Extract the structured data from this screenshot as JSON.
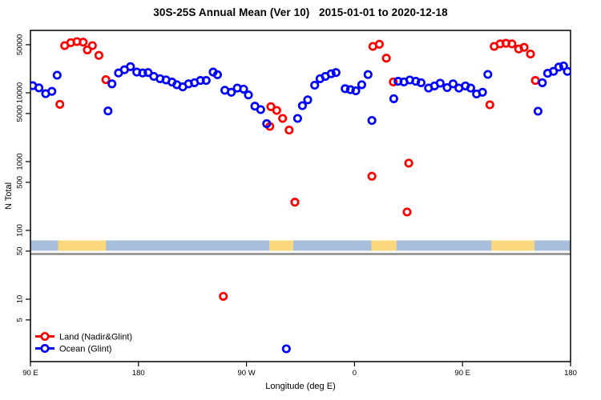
{
  "chart_data": {
    "type": "scatter",
    "title": "30S-25S Annual Mean (Ver 10)   2015-01-01 to 2020-12-18",
    "xlabel": "Longitude (deg E)",
    "ylabel": "N Total",
    "x_axis": {
      "range_deg": [
        90,
        540
      ],
      "wraps_globe": true,
      "ticks": [
        {
          "value": 90,
          "label": "90 E"
        },
        {
          "value": 180,
          "label": "180"
        },
        {
          "value": 270,
          "label": "90 W"
        },
        {
          "value": 360,
          "label": "0"
        },
        {
          "value": 450,
          "label": "90 E"
        },
        {
          "value": 540,
          "label": "180"
        }
      ]
    },
    "y_axis": {
      "scale": "log",
      "ylim": [
        1.2,
        70000
      ],
      "ticks": [
        5,
        10,
        50,
        100,
        500,
        1000,
        5000,
        10000,
        50000
      ],
      "grid": false
    },
    "legend": {
      "position": "bottom-left-inside",
      "entries": [
        {
          "name": "Land (Nadir&Glint)",
          "color": "#ff0000"
        },
        {
          "name": "Ocean (Glint)",
          "color": "#0000ff"
        }
      ]
    },
    "series": [
      {
        "name": "Land (Nadir&Glint)",
        "color": "#ff0000",
        "marker": "open-circle",
        "points": [
          [
            114.5,
            6800
          ],
          [
            118.5,
            48500
          ],
          [
            123.6,
            53600
          ],
          [
            128.7,
            55500
          ],
          [
            133.9,
            54400
          ],
          [
            137.4,
            42000
          ],
          [
            141.6,
            48500
          ],
          [
            147.0,
            35000
          ],
          [
            152.8,
            15500
          ],
          [
            250.7,
            11
          ],
          [
            289.4,
            3250
          ],
          [
            290.3,
            6300
          ],
          [
            295.2,
            5550
          ],
          [
            300.1,
            4250
          ],
          [
            305.5,
            2870
          ],
          [
            310.3,
            257
          ],
          [
            374.5,
            612
          ],
          [
            375.3,
            47200
          ],
          [
            380.7,
            50800
          ],
          [
            386.5,
            31900
          ],
          [
            392.3,
            14400
          ],
          [
            403.8,
            185
          ],
          [
            405.2,
            950
          ],
          [
            472.8,
            6700
          ],
          [
            476.4,
            47200
          ],
          [
            481.3,
            51500
          ],
          [
            486.2,
            52400
          ],
          [
            491.1,
            51500
          ],
          [
            496.8,
            43400
          ],
          [
            501.3,
            45700
          ],
          [
            506.6,
            36600
          ],
          [
            510.7,
            15100
          ]
        ]
      },
      {
        "name": "Ocean (Glint)",
        "color": "#0000ff",
        "marker": "open-circle",
        "points": [
          [
            91.8,
            12700
          ],
          [
            97.1,
            11800
          ],
          [
            102.7,
            9700
          ],
          [
            107.8,
            10500
          ],
          [
            112.2,
            18000
          ],
          [
            154.6,
            5450
          ],
          [
            157.9,
            13500
          ],
          [
            163.4,
            19400
          ],
          [
            168.3,
            21600
          ],
          [
            173.3,
            24000
          ],
          [
            178.6,
            20000
          ],
          [
            183.5,
            19400
          ],
          [
            188.0,
            19700
          ],
          [
            192.8,
            17300
          ],
          [
            198.0,
            16000
          ],
          [
            203.0,
            15400
          ],
          [
            208.0,
            14300
          ],
          [
            212.0,
            13100
          ],
          [
            216.9,
            12200
          ],
          [
            221.7,
            13500
          ],
          [
            226.7,
            14000
          ],
          [
            231.6,
            15100
          ],
          [
            236.4,
            15100
          ],
          [
            242.2,
            20000
          ],
          [
            245.8,
            18300
          ],
          [
            252.0,
            10900
          ],
          [
            257.4,
            10200
          ],
          [
            262.3,
            11700
          ],
          [
            267.6,
            11300
          ],
          [
            271.6,
            9300
          ],
          [
            277.0,
            6400
          ],
          [
            281.8,
            5700
          ],
          [
            286.8,
            3560
          ],
          [
            303.2,
            1.9
          ],
          [
            312.6,
            4250
          ],
          [
            316.6,
            6500
          ],
          [
            321.0,
            7900
          ],
          [
            326.8,
            12900
          ],
          [
            331.3,
            16000
          ],
          [
            335.7,
            17300
          ],
          [
            340.6,
            18900
          ],
          [
            344.6,
            19700
          ],
          [
            352.2,
            11500
          ],
          [
            356.6,
            11100
          ],
          [
            361.1,
            10700
          ],
          [
            366.0,
            13100
          ],
          [
            371.3,
            18400
          ],
          [
            374.5,
            3960
          ],
          [
            392.7,
            8200
          ],
          [
            396.3,
            14700
          ],
          [
            401.2,
            14400
          ],
          [
            406.1,
            15350
          ],
          [
            411.0,
            14700
          ],
          [
            415.4,
            14000
          ],
          [
            421.7,
            11700
          ],
          [
            426.6,
            12600
          ],
          [
            431.4,
            13800
          ],
          [
            437.2,
            11900
          ],
          [
            442.1,
            13500
          ],
          [
            447.0,
            11700
          ],
          [
            452.4,
            12600
          ],
          [
            456.8,
            11700
          ],
          [
            461.7,
            9600
          ],
          [
            466.6,
            10200
          ],
          [
            471.1,
            18500
          ],
          [
            512.9,
            5400
          ],
          [
            516.5,
            14000
          ],
          [
            520.9,
            19200
          ],
          [
            525.8,
            20500
          ],
          [
            530.2,
            23700
          ],
          [
            534.2,
            24600
          ],
          [
            537.4,
            20500
          ]
        ]
      }
    ],
    "land_ocean_strip": {
      "description": "horizontal surface-type band near N=60-90",
      "ocean_color": "#a8bedd",
      "land_color": "#fbd87e",
      "land_segments_deg": [
        [
          113,
          153
        ],
        [
          289,
          309
        ],
        [
          374,
          395
        ],
        [
          474,
          510
        ]
      ],
      "threshold_line": {
        "value": 50,
        "color": "#8a8a8a"
      }
    },
    "frame_color": "#000000",
    "background_color": "#ffffff"
  }
}
